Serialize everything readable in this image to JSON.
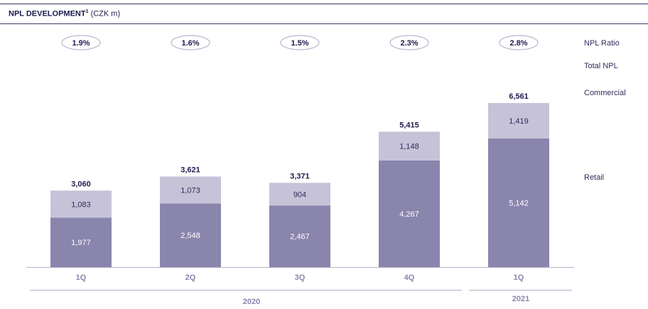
{
  "header": {
    "title": "NPL DEVELOPMENT",
    "title_footnote": "1",
    "title_unit": "(CZK m)"
  },
  "chart_data": {
    "type": "bar",
    "stacked": true,
    "categories": [
      "1Q",
      "2Q",
      "3Q",
      "4Q",
      "1Q"
    ],
    "groups": [
      {
        "label": "2020",
        "categories": [
          "1Q",
          "2Q",
          "3Q",
          "4Q"
        ]
      },
      {
        "label": "2021",
        "categories": [
          "1Q"
        ]
      }
    ],
    "series": [
      {
        "name": "Retail",
        "values": [
          "1,977",
          "2,548",
          "2,467",
          "4,267",
          "5,142"
        ],
        "numeric": [
          1977,
          2548,
          2467,
          4267,
          5142
        ],
        "color": "#8a85ad"
      },
      {
        "name": "Commercial",
        "values": [
          "1,083",
          "1,073",
          "904",
          "1,148",
          "1,419"
        ],
        "numeric": [
          1083,
          1073,
          904,
          1148,
          1419
        ],
        "color": "#c6c3d8"
      }
    ],
    "totals": {
      "name": "Total NPL",
      "values": [
        "3,060",
        "3,621",
        "3,371",
        "5,415",
        "6,561"
      ],
      "numeric": [
        3060,
        3621,
        3371,
        5415,
        6561
      ]
    },
    "ratio": {
      "name": "NPL Ratio",
      "values": [
        "1.9%",
        "1.6%",
        "1.5%",
        "2.3%",
        "2.8%"
      ]
    },
    "ylim": [
      0,
      7000
    ],
    "legend_position": "right"
  }
}
